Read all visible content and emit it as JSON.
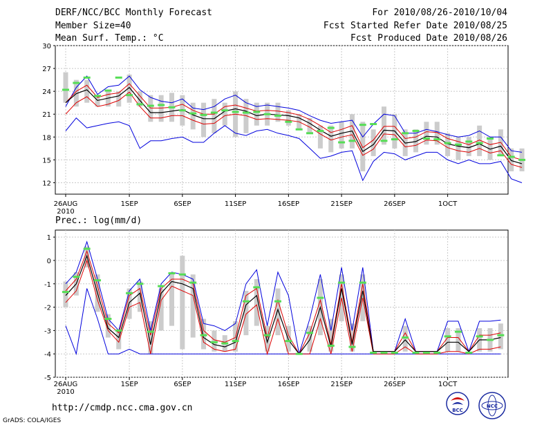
{
  "header": {
    "title": "DERF/NCC/BCC Monthly Forecast",
    "member_size": "Member Size=40",
    "variable": "Mean Surf. Temp.: °C",
    "period": "For 2010/08/26-2010/10/04",
    "started": "Fcst Started Refer Date 2010/08/25",
    "produced": "Fcst Produced Date 2010/08/26"
  },
  "footer": {
    "url": "http://cmdp.ncc.cma.gov.cn",
    "grads": "GrADS: COLA/IGES",
    "logo1": "BCC",
    "logo2": "NCC"
  },
  "colors": {
    "envelope": "#0000dd",
    "spread": "#dd0000",
    "mean": "#000000",
    "box": "#cccccc",
    "obs": "#55dd55",
    "grid": "#c8c8c8"
  },
  "chart_data": [
    {
      "type": "line",
      "title": "Mean Surf. Temp.: °C",
      "x_tick_labels": [
        "26AUG",
        "1SEP",
        "6SEP",
        "11SEP",
        "16SEP",
        "21SEP",
        "26SEP",
        "1OCT"
      ],
      "x_tick_days": [
        0,
        6,
        11,
        16,
        21,
        26,
        31,
        36
      ],
      "year_label": "2010",
      "ylim": [
        10.5,
        30
      ],
      "y_ticks": [
        12,
        15,
        18,
        21,
        24,
        27,
        30
      ],
      "series": [
        {
          "name": "ensemble max",
          "values": [
            22,
            24.5,
            26,
            23.6,
            24.6,
            24.8,
            26,
            24.2,
            23.2,
            22.7,
            22.5,
            23,
            21.8,
            21.6,
            22,
            23,
            23.5,
            22.5,
            22,
            22.2,
            22,
            21.8,
            21.5,
            20.8,
            20.2,
            19.8,
            20,
            20.2,
            18,
            19.7,
            21,
            20.8,
            18.5,
            18.5,
            19,
            18.7,
            18.3,
            18,
            18.2,
            18.8,
            18,
            18,
            16.2,
            16
          ]
        },
        {
          "name": "spread upper",
          "values": [
            22.5,
            24,
            24.8,
            23.2,
            23.6,
            23.8,
            25,
            23.4,
            21.8,
            21.8,
            21.9,
            22.3,
            21.5,
            21,
            21,
            22,
            22.2,
            21.8,
            21.4,
            21.5,
            21.4,
            21.2,
            20.9,
            20.3,
            19.5,
            18.6,
            19,
            19.5,
            16.6,
            17.6,
            19.4,
            19.4,
            17.8,
            18,
            18.7,
            18.6,
            17.8,
            17.4,
            17,
            17.6,
            17,
            17.3,
            15.4,
            15
          ]
        },
        {
          "name": "ensemble mean",
          "values": [
            22.5,
            23.7,
            24.2,
            22.8,
            23.1,
            23.4,
            24.5,
            22.8,
            21.2,
            21.2,
            21.4,
            21.6,
            20.9,
            20.4,
            20.4,
            21.4,
            21.7,
            21.4,
            20.8,
            21,
            20.9,
            20.8,
            20.5,
            19.8,
            18.9,
            18.1,
            18.5,
            18.8,
            16.1,
            17,
            18.9,
            18.8,
            17.2,
            17.4,
            18.1,
            18,
            17.1,
            16.8,
            16.6,
            17.1,
            16.4,
            16.8,
            14.9,
            14.5
          ]
        },
        {
          "name": "spread lower",
          "values": [
            21,
            22.5,
            23.3,
            22,
            22.3,
            22.8,
            23.9,
            22,
            20.5,
            20.5,
            20.8,
            20.8,
            20.2,
            19.7,
            19.8,
            20.8,
            21,
            20.8,
            20.3,
            20.4,
            20.3,
            20.2,
            20,
            19.3,
            18.4,
            17.6,
            18,
            18.3,
            15.6,
            16.4,
            18.4,
            18.3,
            16.7,
            16.9,
            17.6,
            17.5,
            16.6,
            16.2,
            16,
            16.5,
            15.9,
            16.2,
            14.4,
            14
          ]
        },
        {
          "name": "ensemble min",
          "values": [
            18.8,
            20.5,
            19.2,
            19.5,
            19.8,
            20,
            19.5,
            16.5,
            17.5,
            17.5,
            17.8,
            18,
            17.3,
            17.3,
            18.5,
            19.5,
            18.5,
            18.2,
            18.8,
            19,
            18.5,
            18.2,
            17.8,
            16.5,
            15.2,
            15.5,
            16,
            16.2,
            12.3,
            14.8,
            16,
            15.8,
            15,
            15.5,
            16,
            16,
            15,
            14.5,
            15,
            14.5,
            14.5,
            14.8,
            12.5,
            12
          ]
        },
        {
          "name": "box top",
          "values": [
            26.5,
            25.5,
            25.5,
            23.5,
            24,
            24,
            26.2,
            24,
            23.5,
            23.5,
            23.8,
            23.5,
            22.5,
            22.5,
            23,
            22.5,
            24,
            23,
            22.5,
            22.5,
            22.5,
            21.5,
            21,
            20.5,
            19.5,
            19.5,
            20,
            21,
            20,
            19,
            22,
            21,
            19,
            19,
            20,
            20,
            18.5,
            18,
            18,
            19.5,
            18,
            19,
            16.5,
            16.5
          ]
        },
        {
          "name": "box bottom",
          "values": [
            22.5,
            22,
            22.5,
            22,
            22,
            22,
            22.5,
            22,
            20,
            20,
            20,
            19.5,
            19,
            18,
            18.5,
            19.5,
            18,
            18.5,
            19.5,
            19.5,
            20,
            19.5,
            19,
            18.5,
            16.5,
            16,
            16.5,
            16.5,
            13.5,
            15.5,
            17,
            16.5,
            15.5,
            16,
            17,
            17,
            15.5,
            15,
            15.5,
            15.5,
            15,
            15.5,
            13.5,
            13.5
          ]
        },
        {
          "name": "observed",
          "values": [
            24.2,
            25.1,
            25.8,
            23.4,
            24.1,
            25.8,
            23.5,
            22.3,
            22.1,
            22.2,
            21.9,
            21.5,
            21.1,
            20.9,
            21.2,
            21.5,
            21.3,
            21.2,
            21.3,
            21,
            20.8,
            20,
            19,
            18.5,
            18.8,
            19.2,
            17.3,
            17.5,
            19.6,
            19.7,
            17.5,
            17.7,
            18.5,
            18.8,
            17.8,
            17.7,
            17.2,
            17,
            17.4,
            17.2,
            17.8,
            15.6,
            15.4,
            15
          ]
        }
      ]
    },
    {
      "type": "line",
      "title": "Prec.: log(mm/d)",
      "x_tick_labels": [
        "26AUG",
        "1SEP",
        "6SEP",
        "11SEP",
        "16SEP",
        "21SEP",
        "26SEP",
        "1OCT"
      ],
      "x_tick_days": [
        0,
        6,
        11,
        16,
        21,
        26,
        31,
        36
      ],
      "year_label": "2010",
      "ylim": [
        -5,
        1.3
      ],
      "y_ticks": [
        -5,
        -4,
        -3,
        -2,
        -1,
        0,
        1
      ],
      "series": [
        {
          "name": "ensemble max",
          "values": [
            -1,
            -0.5,
            0.8,
            -0.8,
            -2.5,
            -3,
            -1.3,
            -0.8,
            -3,
            -1,
            -0.5,
            -0.6,
            -0.8,
            -2.7,
            -2.8,
            -3,
            -2.7,
            -1,
            -0.4,
            -2.8,
            -0.5,
            -1.5,
            -4,
            -2.5,
            -0.6,
            -3,
            -0.3,
            -3,
            -0.3,
            -3.9,
            -3.9,
            -3.9,
            -2.5,
            -3.9,
            -3.9,
            -3.9,
            -2.6,
            -2.6,
            -3.9,
            -2.6,
            -2.6,
            -2.55
          ]
        },
        {
          "name": "spread upper",
          "values": [
            -1.3,
            -0.8,
            0.4,
            -1.1,
            -2.7,
            -3.1,
            -1.5,
            -1.2,
            -3.2,
            -1.2,
            -0.8,
            -0.8,
            -1,
            -3,
            -3.4,
            -3.5,
            -3.3,
            -1.5,
            -1.2,
            -3.3,
            -1.7,
            -3.2,
            -4,
            -3.1,
            -1.7,
            -3.6,
            -1,
            -3.5,
            -1,
            -3.9,
            -3.9,
            -3.9,
            -3.1,
            -3.9,
            -3.9,
            -3.9,
            -3.3,
            -3.3,
            -3.9,
            -3.2,
            -3.2,
            -3.1
          ]
        },
        {
          "name": "ensemble mean",
          "values": [
            -1.5,
            -1,
            0.2,
            -1.4,
            -2.9,
            -3.3,
            -1.8,
            -1.4,
            -3.6,
            -1.4,
            -0.9,
            -1,
            -1.2,
            -3.3,
            -3.6,
            -3.7,
            -3.5,
            -1.9,
            -1.5,
            -3.5,
            -2.1,
            -3.4,
            -4,
            -3.4,
            -2,
            -3.7,
            -1.2,
            -3.6,
            -1.3,
            -3.9,
            -3.9,
            -3.9,
            -3.4,
            -3.9,
            -3.9,
            -3.9,
            -3.5,
            -3.5,
            -3.9,
            -3.4,
            -3.4,
            -3.3
          ]
        },
        {
          "name": "spread lower",
          "values": [
            -1.8,
            -1.3,
            0,
            -1.7,
            -3,
            -3.5,
            -2,
            -1.8,
            -4,
            -1.7,
            -1.1,
            -1.3,
            -1.5,
            -3.5,
            -3.8,
            -3.9,
            -3.8,
            -2.3,
            -1.9,
            -4,
            -2.5,
            -4,
            -4,
            -4,
            -2.5,
            -4,
            -1.6,
            -3.9,
            -1.6,
            -4,
            -4,
            -4,
            -3.7,
            -4,
            -4,
            -4,
            -3.9,
            -3.9,
            -4,
            -3.8,
            -3.8,
            -3.7
          ]
        },
        {
          "name": "ensemble min",
          "values": [
            -2.8,
            -4,
            -1.2,
            -2.5,
            -4,
            -4,
            -3.8,
            -4,
            -4,
            -4,
            -4,
            -4,
            -4,
            -4,
            -4,
            -4,
            -4,
            -4,
            -4,
            -4,
            -4,
            -4,
            -4,
            -4,
            -4,
            -4,
            -4,
            -4,
            -4,
            -4,
            -4,
            -4,
            -4,
            -4,
            -4,
            -4,
            -4,
            -4,
            -4,
            -4,
            -4,
            -4
          ]
        },
        {
          "name": "box top",
          "values": [
            -0.9,
            -0.5,
            0.6,
            -0.6,
            -2.3,
            -3,
            -1.2,
            -0.9,
            -2.6,
            -1.2,
            -0.5,
            0.2,
            -0.6,
            -2.5,
            -3,
            -3.2,
            -2.6,
            -1.3,
            -0.8,
            -2.8,
            -1.2,
            -2.8,
            -4,
            -2.8,
            -0.8,
            -2.5,
            -0.6,
            -2.7,
            -0.6,
            -3.9,
            -3.9,
            -3.9,
            -2.8,
            -3.9,
            -3.9,
            -3.9,
            -2.9,
            -2.9,
            -3.9,
            -2.9,
            -2.9,
            -2.7
          ]
        },
        {
          "name": "box bottom",
          "values": [
            -2,
            -1.5,
            -0.3,
            -2.2,
            -3.3,
            -3.8,
            -2.5,
            -2.2,
            -4,
            -3,
            -2.8,
            -3.8,
            -3.3,
            -3.8,
            -3.9,
            -3.9,
            -3.9,
            -3.2,
            -2.8,
            -3.9,
            -3.2,
            -3.9,
            -4,
            -3.9,
            -3.2,
            -3.9,
            -2.6,
            -3.9,
            -2.6,
            -4,
            -4,
            -4,
            -3.9,
            -4,
            -4,
            -4,
            -3.9,
            -3.9,
            -4,
            -3.9,
            -3.9,
            -3.8
          ]
        },
        {
          "name": "observed",
          "values": [
            -1.35,
            -0.7,
            0.5,
            -0.85,
            -2.5,
            -3,
            -1.4,
            -1,
            -3.05,
            -1.1,
            -0.55,
            -0.6,
            -0.95,
            -3.2,
            -3.5,
            -3.55,
            -3.45,
            -1.75,
            -1.15,
            -3.2,
            -1.75,
            -3.45,
            -4,
            -3.1,
            -1.6,
            -3.65,
            -0.95,
            -3.7,
            -0.95,
            -3.95,
            -3.95,
            -3.95,
            -3.3,
            -3.95,
            -3.95,
            -3.95,
            -3.25,
            -3.05,
            -3.95,
            -3.25,
            -3.4,
            -3.2
          ]
        }
      ]
    }
  ]
}
